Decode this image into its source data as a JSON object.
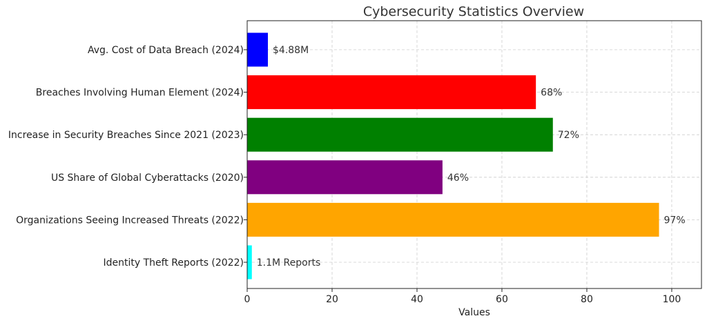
{
  "chart_data": {
    "type": "bar",
    "orientation": "horizontal",
    "title": "Cybersecurity Statistics Overview",
    "xlabel": "Values",
    "ylabel": "",
    "xlim": [
      0,
      107
    ],
    "xticks": [
      0,
      20,
      40,
      60,
      80,
      100
    ],
    "grid": true,
    "categories": [
      "Avg. Cost of Data Breach (2024)",
      "Breaches Involving Human Element (2024)",
      "Increase in Security Breaches Since 2021 (2023)",
      "US Share of Global Cyberattacks (2020)",
      "Organizations Seeing Increased Threats (2022)",
      "Identity Theft Reports (2022)"
    ],
    "values": [
      4.88,
      68,
      72,
      46,
      97,
      1.1
    ],
    "data_labels": [
      "$4.88M",
      "68%",
      "72%",
      "46%",
      "97%",
      "1.1M Reports"
    ],
    "colors": [
      "#0000ff",
      "#ff0000",
      "#008000",
      "#800080",
      "#ffa500",
      "#00ffff"
    ]
  }
}
